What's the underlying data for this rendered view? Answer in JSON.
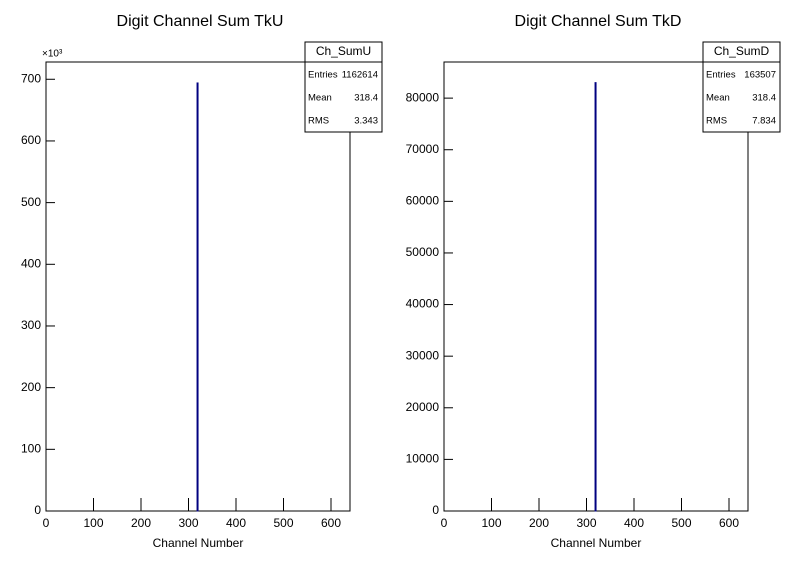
{
  "chart_data": [
    {
      "type": "histogram",
      "title": "Digit Channel Sum TkU",
      "xlabel": "Channel Number",
      "y_multiplier": "×10³",
      "bins": [
        318,
        319
      ],
      "values": [
        694
      ],
      "color": "#000080",
      "xlim": [
        0,
        640
      ],
      "xticks": [
        0,
        100,
        200,
        300,
        400,
        500,
        600
      ],
      "ylim": [
        0,
        728
      ],
      "yticks": [
        0,
        100,
        200,
        300,
        400,
        500,
        600,
        700
      ],
      "stats": {
        "title": "Ch_SumU",
        "rows": [
          {
            "label": "Entries",
            "value": 1162614
          },
          {
            "label": "Mean",
            "value": 318.4
          },
          {
            "label": "RMS",
            "value": 3.343
          }
        ]
      }
    },
    {
      "type": "histogram",
      "title": "Digit Channel Sum TkD",
      "xlabel": "Channel Number",
      "bins": [
        318,
        319
      ],
      "values": [
        83000
      ],
      "color": "#000080",
      "xlim": [
        0,
        640
      ],
      "xticks": [
        0,
        100,
        200,
        300,
        400,
        500,
        600
      ],
      "ylim": [
        0,
        87000
      ],
      "yticks": [
        0,
        10000,
        20000,
        30000,
        40000,
        50000,
        60000,
        70000,
        80000
      ],
      "stats": {
        "title": "Ch_SumD",
        "rows": [
          {
            "label": "Entries",
            "value": 163507
          },
          {
            "label": "Mean",
            "value": 318.4
          },
          {
            "label": "RMS",
            "value": 7.834
          }
        ]
      }
    }
  ]
}
